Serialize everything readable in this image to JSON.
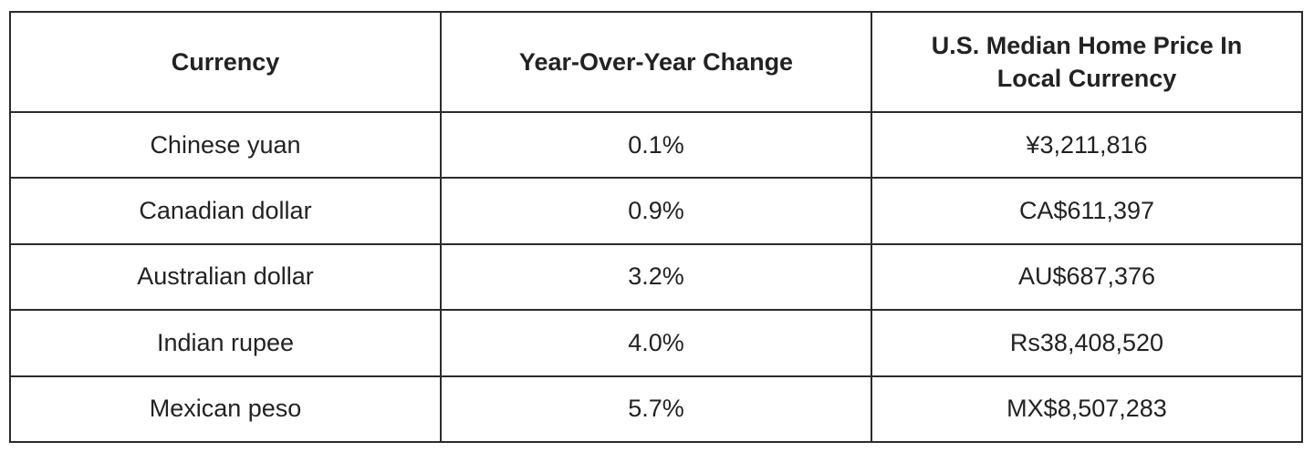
{
  "table": {
    "header": [
      "Currency",
      "Year-Over-Year Change",
      "U.S. Median Home Price In Local Currency"
    ],
    "rows": [
      [
        "Chinese yuan",
        "0.1%",
        "¥3,211,816"
      ],
      [
        "Canadian dollar",
        "0.9%",
        "CA$611,397"
      ],
      [
        "Australian dollar",
        "3.2%",
        "AU$687,376"
      ],
      [
        "Indian rupee",
        "4.0%",
        "Rs38,408,520"
      ],
      [
        "Mexican peso",
        "5.7%",
        "MX$8,507,283"
      ]
    ]
  }
}
